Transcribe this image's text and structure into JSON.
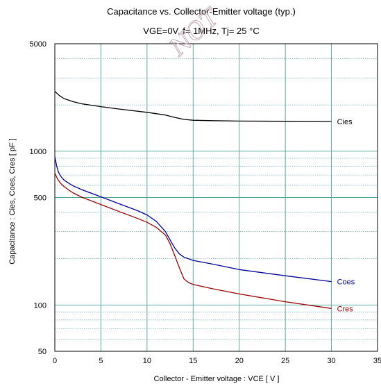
{
  "chart_data": {
    "type": "line",
    "title": "Capacitance  vs.  Collector-Emitter voltage  (typ.)",
    "subtitle": "VGE=0V,  f= 1MHz,  Tj= 25  °C",
    "xlabel": "Collector - Emitter voltage  :  VCE  [ V ]",
    "ylabel": "Capacitance  :  Cies, Coes, Cres  [ pF ]",
    "xlim": [
      0,
      35
    ],
    "ylim": [
      50,
      5000
    ],
    "yscale": "log",
    "xticks": [
      0,
      5,
      10,
      15,
      20,
      25,
      30,
      35
    ],
    "xtick_labels": [
      "0",
      "5",
      "10",
      "15",
      "20",
      "25",
      "30",
      "35"
    ],
    "yticks": [
      50,
      100,
      500,
      1000,
      5000
    ],
    "ytick_labels": [
      "50",
      "100",
      "500",
      "1000",
      "5000"
    ],
    "grid": true,
    "legend": "inline labels at right end of each curve",
    "watermark": "NOT",
    "series": [
      {
        "name": "Cies",
        "color": "#000000",
        "x": [
          0,
          0.5,
          1,
          2,
          3,
          5,
          7,
          10,
          12,
          13,
          14,
          15,
          17,
          20,
          25,
          30
        ],
        "y": [
          2450,
          2300,
          2200,
          2100,
          2030,
          1950,
          1880,
          1790,
          1720,
          1660,
          1610,
          1590,
          1580,
          1570,
          1565,
          1560
        ]
      },
      {
        "name": "Coes",
        "color": "#000099",
        "x": [
          0,
          0.2,
          0.4,
          0.7,
          1,
          1.5,
          2,
          3,
          5,
          7,
          9,
          10,
          11,
          12,
          12.5,
          13,
          13.5,
          14,
          15,
          17,
          20,
          25,
          30
        ],
        "y": [
          920,
          800,
          730,
          680,
          650,
          620,
          595,
          560,
          505,
          455,
          410,
          385,
          350,
          300,
          265,
          235,
          215,
          205,
          195,
          185,
          170,
          155,
          142
        ]
      },
      {
        "name": "Cres",
        "color": "#990000",
        "x": [
          0,
          0.3,
          0.6,
          1,
          1.5,
          2,
          3,
          5,
          7,
          9,
          10,
          11,
          12,
          12.5,
          13,
          13.5,
          14,
          14.5,
          15,
          17,
          20,
          25,
          30
        ],
        "y": [
          720,
          660,
          620,
          590,
          560,
          535,
          500,
          450,
          405,
          365,
          345,
          320,
          285,
          250,
          210,
          175,
          148,
          140,
          136,
          128,
          118,
          105,
          95
        ]
      }
    ]
  }
}
